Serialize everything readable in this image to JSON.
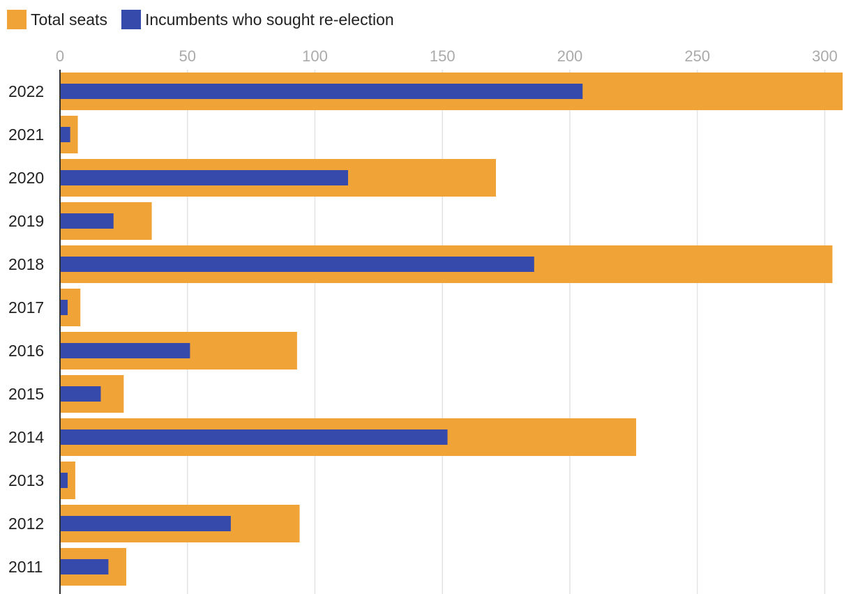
{
  "chart_data": {
    "type": "bar",
    "orientation": "horizontal",
    "categories": [
      "2022",
      "2021",
      "2020",
      "2019",
      "2018",
      "2017",
      "2016",
      "2015",
      "2014",
      "2013",
      "2012",
      "2011"
    ],
    "series": [
      {
        "name": "Total seats",
        "color": "#f0a336",
        "values": [
          307,
          7,
          171,
          36,
          303,
          8,
          93,
          25,
          226,
          6,
          94,
          26
        ]
      },
      {
        "name": "Incumbents who sought re-election",
        "color": "#364aab",
        "values": [
          205,
          4,
          113,
          21,
          186,
          3,
          51,
          16,
          152,
          3,
          67,
          19
        ]
      }
    ],
    "xlim": [
      0,
      307
    ],
    "xticks": [
      0,
      50,
      100,
      150,
      200,
      250,
      300
    ],
    "grid": true,
    "legend_position": "top-left"
  }
}
